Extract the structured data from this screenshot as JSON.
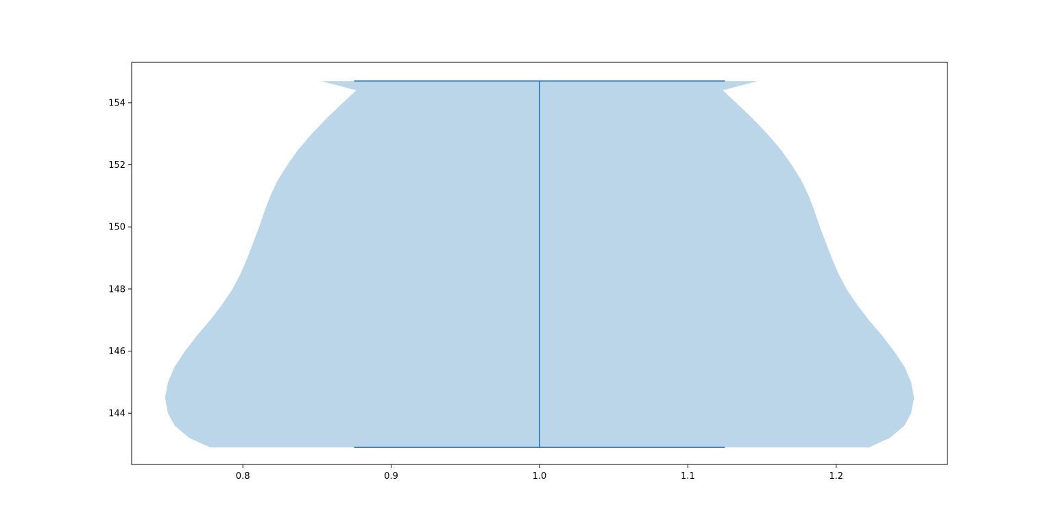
{
  "chart_data": {
    "type": "violin",
    "title": "",
    "xlabel": "",
    "ylabel": "",
    "xlim": [
      0.725,
      1.275
    ],
    "ylim": [
      142.35,
      155.3
    ],
    "x_ticks": [
      0.8,
      0.9,
      1.0,
      1.1,
      1.2
    ],
    "x_tick_labels": [
      "0.8",
      "0.9",
      "1.0",
      "1.1",
      "1.2"
    ],
    "y_ticks": [
      144,
      146,
      148,
      150,
      152,
      154
    ],
    "y_tick_labels": [
      "144",
      "146",
      "148",
      "150",
      "152",
      "154"
    ],
    "grid": false,
    "violins": [
      {
        "position": 1.0,
        "min": 142.9,
        "max": 154.7,
        "half_width_profile": [
          {
            "y": 142.9,
            "hw": 0.222
          },
          {
            "y": 143.2,
            "hw": 0.236
          },
          {
            "y": 143.6,
            "hw": 0.246
          },
          {
            "y": 144.0,
            "hw": 0.2505
          },
          {
            "y": 144.5,
            "hw": 0.2525
          },
          {
            "y": 145.0,
            "hw": 0.2505
          },
          {
            "y": 145.5,
            "hw": 0.246
          },
          {
            "y": 146.0,
            "hw": 0.239
          },
          {
            "y": 146.5,
            "hw": 0.231
          },
          {
            "y": 147.0,
            "hw": 0.222
          },
          {
            "y": 147.5,
            "hw": 0.214
          },
          {
            "y": 148.0,
            "hw": 0.207
          },
          {
            "y": 148.5,
            "hw": 0.2015
          },
          {
            "y": 149.0,
            "hw": 0.197
          },
          {
            "y": 149.5,
            "hw": 0.193
          },
          {
            "y": 150.0,
            "hw": 0.189
          },
          {
            "y": 150.5,
            "hw": 0.1855
          },
          {
            "y": 151.0,
            "hw": 0.1815
          },
          {
            "y": 151.5,
            "hw": 0.1765
          },
          {
            "y": 152.0,
            "hw": 0.17
          },
          {
            "y": 152.5,
            "hw": 0.1625
          },
          {
            "y": 153.0,
            "hw": 0.1535
          },
          {
            "y": 153.5,
            "hw": 0.1435
          },
          {
            "y": 154.0,
            "hw": 0.1325
          },
          {
            "y": 154.4,
            "hw": 0.1235
          },
          {
            "y": 154.7,
            "hw": 0.1475
          }
        ],
        "cap_half_width": 0.125
      }
    ],
    "colors": {
      "body": "#1f77b4",
      "body_opacity": 0.3,
      "lines": "#1f77b4",
      "axes": "#000000"
    }
  }
}
